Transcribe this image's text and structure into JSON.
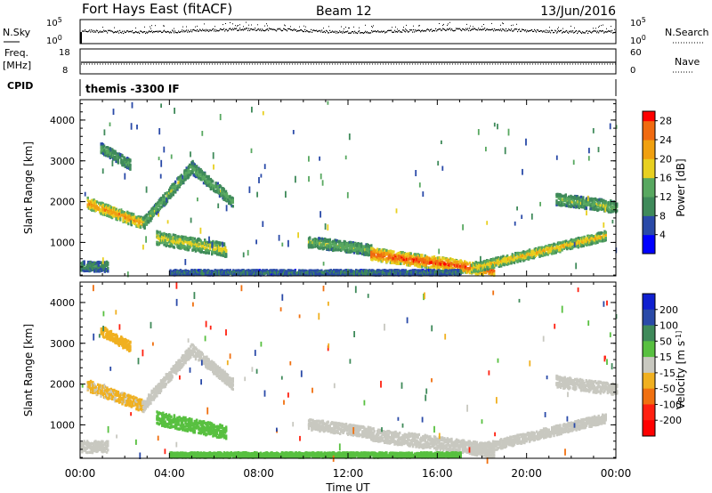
{
  "header": {
    "station": "Fort Hays East (fitACF)",
    "beam": "Beam 12",
    "date": "13/Jun/2016"
  },
  "strip_panels": {
    "nsky": {
      "left_label": "N.Sky",
      "right_label": "N.Search",
      "left_ticks": [
        "10^5",
        "10^0"
      ],
      "right_ticks": [
        "10^5",
        "10^0"
      ]
    },
    "freq": {
      "left_label_line1": "Freq.",
      "left_label_line2": "[MHz]",
      "left_ticks": [
        "18",
        "8"
      ],
      "right_label": "Nave",
      "right_ticks": [
        "60",
        "0"
      ]
    },
    "cpid": {
      "left_label": "CPID",
      "text": "themis -3300 IF"
    }
  },
  "x_axis": {
    "label": "Time UT",
    "tick_labels": [
      "00:00",
      "04:00",
      "08:00",
      "12:00",
      "16:00",
      "20:00",
      "00:00"
    ]
  },
  "colors": {
    "power_scale": [
      "#0000ff",
      "#2a4aa8",
      "#3f8a5a",
      "#58a860",
      "#e8d020",
      "#f0a010",
      "#f06a10",
      "#ff0000"
    ],
    "velocity_scale": [
      "#1020d0",
      "#2a4aa8",
      "#3f8a5a",
      "#58c040",
      "#c8c8c0",
      "#f0b020",
      "#f07010",
      "#ff2010",
      "#ff0000"
    ]
  },
  "chart_data": [
    {
      "type": "heatmap",
      "title": "Power",
      "xlabel": "Time UT",
      "ylabel": "Slant Range [km]",
      "xlim": [
        0,
        24
      ],
      "ylim": [
        180,
        4500
      ],
      "y_ticks": [
        "1000",
        "2000",
        "3000",
        "4000"
      ],
      "colorbar": {
        "label": "Power [dB]",
        "tick_labels": [
          "4",
          "8",
          "12",
          "16",
          "20",
          "24",
          "28"
        ],
        "range": [
          0,
          30
        ]
      },
      "regions": [
        {
          "name": "early-band",
          "x": [
            0.3,
            2.8
          ],
          "y_start": 1950,
          "y_end": 1450,
          "width": 280,
          "level": 22
        },
        {
          "name": "arc-rising",
          "x": [
            2.8,
            5.0
          ],
          "y_start": 1450,
          "y_end": 2850,
          "width": 280,
          "level": 14
        },
        {
          "name": "arc-falling",
          "x": [
            5.0,
            6.8
          ],
          "y_start": 2800,
          "y_end": 2000,
          "width": 280,
          "level": 13
        },
        {
          "name": "lower-arc",
          "x": [
            3.4,
            6.5
          ],
          "y_start": 1100,
          "y_end": 800,
          "width": 320,
          "level": 17
        },
        {
          "name": "patch-3000",
          "x": [
            0.9,
            2.2
          ],
          "y_start": 3300,
          "y_end": 2900,
          "width": 250,
          "level": 12
        },
        {
          "name": "near-range-early",
          "x": [
            0.0,
            1.2
          ],
          "y_start": 400,
          "y_end": 400,
          "width": 250,
          "level": 10
        },
        {
          "name": "mid-band",
          "x": [
            10.2,
            13.0
          ],
          "y_start": 1000,
          "y_end": 800,
          "width": 260,
          "level": 14
        },
        {
          "name": "main-event",
          "x": [
            13.0,
            18.5
          ],
          "y_start": 700,
          "y_end": 300,
          "width": 300,
          "level": 26
        },
        {
          "name": "evening-rise",
          "x": [
            17.5,
            23.5
          ],
          "y_start": 350,
          "y_end": 1150,
          "width": 230,
          "level": 19
        },
        {
          "name": "late-band",
          "x": [
            21.3,
            24.0
          ],
          "y_start": 2050,
          "y_end": 1850,
          "width": 280,
          "level": 14
        },
        {
          "name": "near-range-line",
          "x": [
            4.0,
            17.0
          ],
          "y_start": 250,
          "y_end": 250,
          "width": 120,
          "level": 9
        }
      ]
    },
    {
      "type": "heatmap",
      "title": "Velocity",
      "xlabel": "Time UT",
      "ylabel": "Slant Range [km]",
      "xlim": [
        0,
        24
      ],
      "ylim": [
        180,
        4500
      ],
      "y_ticks": [
        "1000",
        "2000",
        "3000",
        "4000"
      ],
      "colorbar": {
        "label": "Velocity [m s^-1]",
        "tick_labels": [
          "200",
          "100",
          "50",
          "15",
          "-15",
          "-50",
          "-100",
          "-200"
        ]
      },
      "regions": [
        {
          "name": "early-band",
          "x": [
            0.3,
            2.8
          ],
          "y_start": 1950,
          "y_end": 1450,
          "width": 280,
          "velocity": -20
        },
        {
          "name": "arc-rising",
          "x": [
            2.8,
            5.0
          ],
          "y_start": 1450,
          "y_end": 2850,
          "width": 280,
          "velocity": 0
        },
        {
          "name": "arc-falling",
          "x": [
            5.0,
            6.8
          ],
          "y_start": 2800,
          "y_end": 2000,
          "width": 280,
          "velocity": 0
        },
        {
          "name": "green-patch",
          "x": [
            3.4,
            6.5
          ],
          "y_start": 1150,
          "y_end": 800,
          "width": 320,
          "velocity": 40
        },
        {
          "name": "patch-3000",
          "x": [
            0.9,
            2.2
          ],
          "y_start": 3300,
          "y_end": 2900,
          "width": 250,
          "velocity": -40
        },
        {
          "name": "near-range-early",
          "x": [
            0.0,
            1.2
          ],
          "y_start": 450,
          "y_end": 450,
          "width": 280,
          "velocity": 0
        },
        {
          "name": "mid-band",
          "x": [
            10.2,
            13.0
          ],
          "y_start": 1000,
          "y_end": 800,
          "width": 260,
          "velocity": 0
        },
        {
          "name": "main-event",
          "x": [
            13.0,
            18.5
          ],
          "y_start": 750,
          "y_end": 350,
          "width": 320,
          "velocity": 0
        },
        {
          "name": "evening-rise",
          "x": [
            17.5,
            23.5
          ],
          "y_start": 350,
          "y_end": 1150,
          "width": 230,
          "velocity": 0
        },
        {
          "name": "late-band",
          "x": [
            21.3,
            24.0
          ],
          "y_start": 2050,
          "y_end": 1850,
          "width": 280,
          "velocity": 0
        },
        {
          "name": "near-range-line",
          "x": [
            4.0,
            17.0
          ],
          "y_start": 250,
          "y_end": 250,
          "width": 120,
          "velocity": 30
        }
      ]
    }
  ]
}
